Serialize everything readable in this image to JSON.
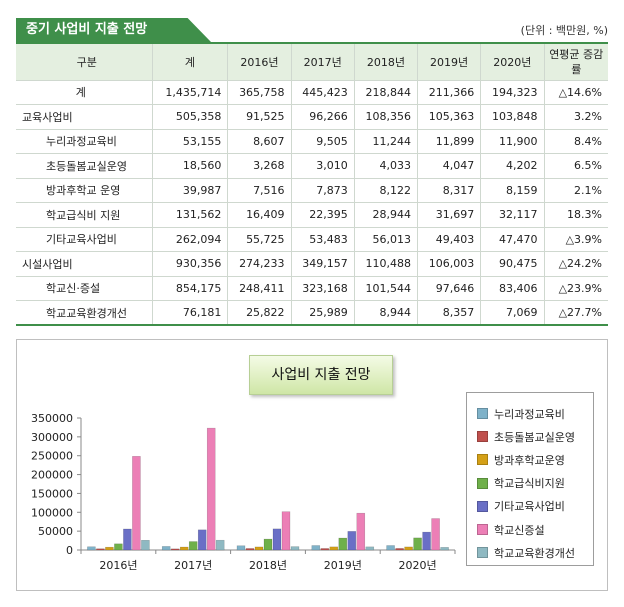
{
  "header": {
    "title": "중기 사업비 지출 전망",
    "unit_note": "(단위 : 백만원, %)"
  },
  "table": {
    "columns": [
      "구분",
      "계",
      "2016년",
      "2017년",
      "2018년",
      "2019년",
      "2020년",
      "연평균 증감률"
    ],
    "rows": [
      {
        "label": "계",
        "level": "total",
        "values": [
          "1,435,714",
          "365,758",
          "445,423",
          "218,844",
          "211,366",
          "194,323",
          "△14.6%"
        ]
      },
      {
        "label": "교육사업비",
        "level": "group",
        "values": [
          "505,358",
          "91,525",
          "96,266",
          "108,356",
          "105,363",
          "103,848",
          "3.2%"
        ]
      },
      {
        "label": "누리과정교육비",
        "level": "sub",
        "values": [
          "53,155",
          "8,607",
          "9,505",
          "11,244",
          "11,899",
          "11,900",
          "8.4%"
        ]
      },
      {
        "label": "초등돌봄교실운영",
        "level": "sub",
        "values": [
          "18,560",
          "3,268",
          "3,010",
          "4,033",
          "4,047",
          "4,202",
          "6.5%"
        ]
      },
      {
        "label": "방과후학교 운영",
        "level": "sub",
        "values": [
          "39,987",
          "7,516",
          "7,873",
          "8,122",
          "8,317",
          "8,159",
          "2.1%"
        ]
      },
      {
        "label": "학교급식비 지원",
        "level": "sub",
        "values": [
          "131,562",
          "16,409",
          "22,395",
          "28,944",
          "31,697",
          "32,117",
          "18.3%"
        ]
      },
      {
        "label": "기타교육사업비",
        "level": "sub",
        "values": [
          "262,094",
          "55,725",
          "53,483",
          "56,013",
          "49,403",
          "47,470",
          "△3.9%"
        ]
      },
      {
        "label": "시설사업비",
        "level": "group",
        "values": [
          "930,356",
          "274,233",
          "349,157",
          "110,488",
          "106,003",
          "90,475",
          "△24.2%"
        ]
      },
      {
        "label": "학교신·증설",
        "level": "sub",
        "values": [
          "854,175",
          "248,411",
          "323,168",
          "101,544",
          "97,646",
          "83,406",
          "△23.9%"
        ]
      },
      {
        "label": "학교교육환경개선",
        "level": "sub",
        "values": [
          "76,181",
          "25,822",
          "25,989",
          "8,944",
          "8,357",
          "7,069",
          "△27.7%"
        ]
      }
    ]
  },
  "chart_data": {
    "type": "bar",
    "title": "사업비 지출 전망",
    "categories": [
      "2016년",
      "2017년",
      "2018년",
      "2019년",
      "2020년"
    ],
    "ylim": [
      0,
      350000
    ],
    "yticks": [
      0,
      50000,
      100000,
      150000,
      200000,
      250000,
      300000,
      350000
    ],
    "grid": false,
    "legend_position": "right",
    "series": [
      {
        "name": "누리과정교육비",
        "color": "#7fb2c9",
        "values": [
          8607,
          9505,
          11244,
          11899,
          11900
        ]
      },
      {
        "name": "초등돌봄교실운영",
        "color": "#c0504d",
        "values": [
          3268,
          3010,
          4033,
          4047,
          4202
        ]
      },
      {
        "name": "방과후학교운영",
        "color": "#d4a017",
        "values": [
          7516,
          7873,
          8122,
          8317,
          8159
        ]
      },
      {
        "name": "학교급식비지원",
        "color": "#6fb04a",
        "values": [
          16409,
          22395,
          28944,
          31697,
          32117
        ]
      },
      {
        "name": "기타교육사업비",
        "color": "#6a6fc6",
        "values": [
          55725,
          53483,
          56013,
          49403,
          47470
        ]
      },
      {
        "name": "학교신증설",
        "color": "#ec7fb6",
        "values": [
          248411,
          323168,
          101544,
          97646,
          83406
        ]
      },
      {
        "name": "학교교육환경개선",
        "color": "#8fb9c2",
        "values": [
          25822,
          25989,
          8944,
          8357,
          7069
        ]
      }
    ]
  }
}
